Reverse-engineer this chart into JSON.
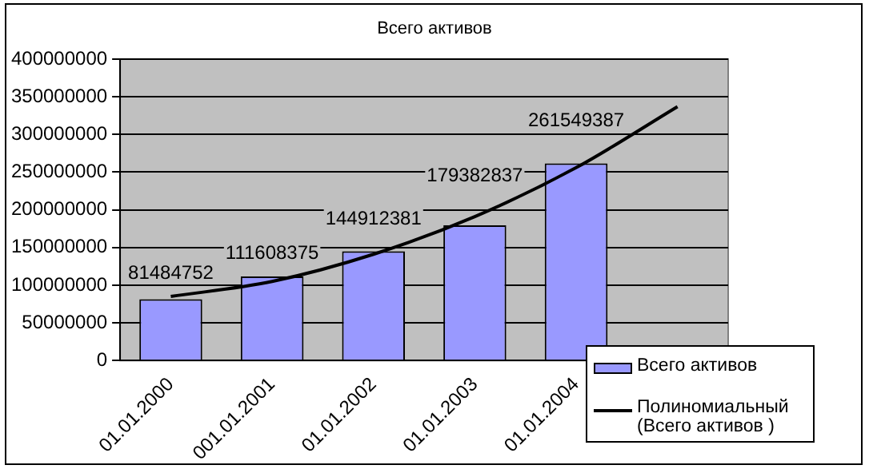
{
  "chart_data": {
    "type": "bar",
    "title": "Всего активов",
    "categories": [
      "01.01.2000",
      "001.01.2001",
      "01.01.2002",
      "01.01.2003",
      "01.01.2004",
      null
    ],
    "series": [
      {
        "name": "Всего активов",
        "color": "#9999ff",
        "values": [
          81484752,
          111608375,
          144912381,
          179382837,
          261549387,
          null
        ],
        "data_labels": true
      },
      {
        "name": "Полиномиальный (Всего активов )",
        "type": "line",
        "color": "#000000",
        "values": [
          85000000,
          105000000,
          141000000,
          191000000,
          256000000,
          337000000
        ]
      }
    ],
    "ylim": [
      0,
      400000000
    ],
    "yticks": [
      0,
      50000000,
      100000000,
      150000000,
      200000000,
      250000000,
      300000000,
      350000000,
      400000000
    ],
    "grid": "y",
    "legend": "bottom right",
    "marker": "none",
    "line_style": "solid"
  }
}
